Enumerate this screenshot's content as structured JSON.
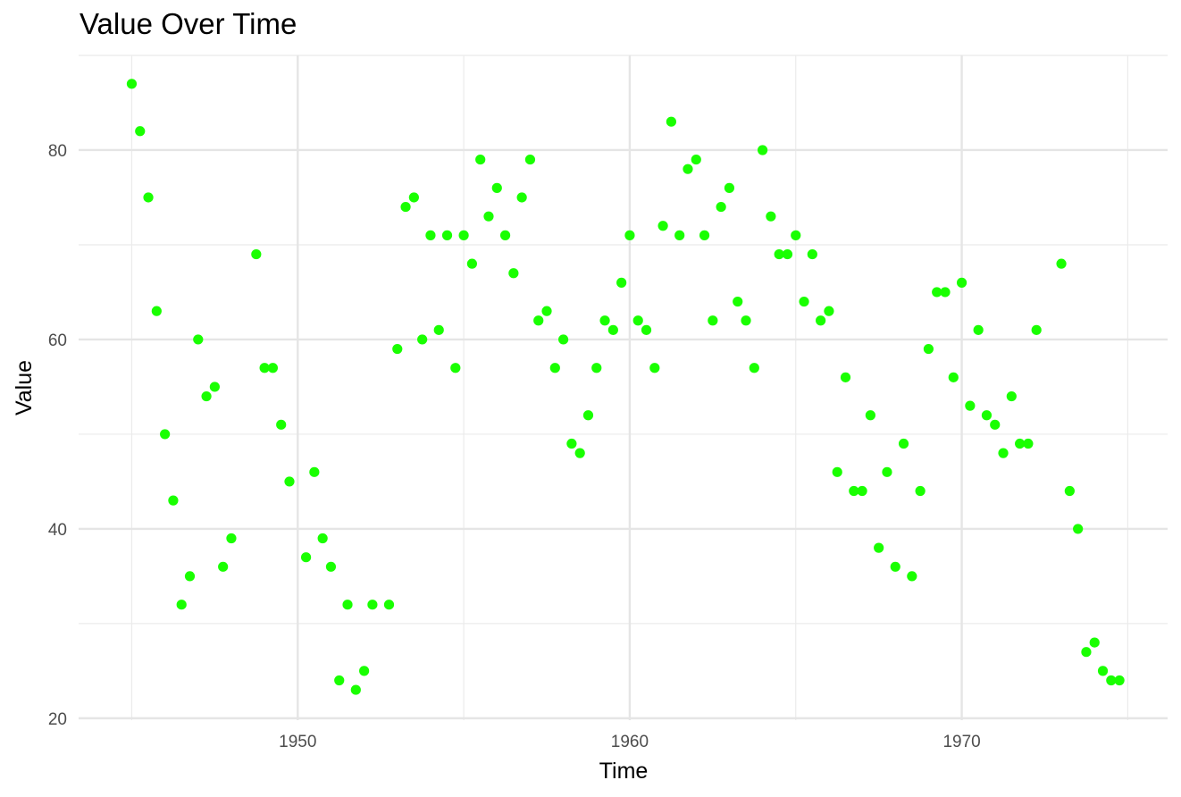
{
  "chart_data": {
    "type": "scatter",
    "title": "Value Over Time",
    "xlabel": "Time",
    "ylabel": "Value",
    "xlim": [
      1943.4,
      1976.2
    ],
    "ylim": [
      19.8,
      90.0
    ],
    "x_ticks": [
      1950,
      1960,
      1970
    ],
    "x_tick_labels": [
      "1950",
      "1960",
      "1970"
    ],
    "y_ticks": [
      20,
      40,
      60,
      80
    ],
    "y_tick_labels": [
      "20",
      "40",
      "60",
      "80"
    ],
    "grid": true,
    "point_color": "#19ff00",
    "points": [
      [
        1945.0,
        87
      ],
      [
        1945.25,
        82
      ],
      [
        1945.5,
        75
      ],
      [
        1945.75,
        63
      ],
      [
        1946.0,
        50
      ],
      [
        1946.25,
        43
      ],
      [
        1946.5,
        32
      ],
      [
        1946.75,
        35
      ],
      [
        1947.0,
        60
      ],
      [
        1947.25,
        54
      ],
      [
        1947.5,
        55
      ],
      [
        1947.75,
        36
      ],
      [
        1948.0,
        39
      ],
      [
        1948.75,
        69
      ],
      [
        1949.0,
        57
      ],
      [
        1949.25,
        57
      ],
      [
        1949.5,
        51
      ],
      [
        1949.75,
        45
      ],
      [
        1950.25,
        37
      ],
      [
        1950.5,
        46
      ],
      [
        1950.75,
        39
      ],
      [
        1951.0,
        36
      ],
      [
        1951.25,
        24
      ],
      [
        1951.5,
        32
      ],
      [
        1951.75,
        23
      ],
      [
        1952.0,
        25
      ],
      [
        1952.25,
        32
      ],
      [
        1952.75,
        32
      ],
      [
        1953.0,
        59
      ],
      [
        1953.25,
        74
      ],
      [
        1953.5,
        75
      ],
      [
        1953.75,
        60
      ],
      [
        1954.0,
        71
      ],
      [
        1954.25,
        61
      ],
      [
        1954.5,
        71
      ],
      [
        1954.75,
        57
      ],
      [
        1955.0,
        71
      ],
      [
        1955.25,
        68
      ],
      [
        1955.5,
        79
      ],
      [
        1955.75,
        73
      ],
      [
        1956.0,
        76
      ],
      [
        1956.25,
        71
      ],
      [
        1956.5,
        67
      ],
      [
        1956.75,
        75
      ],
      [
        1957.0,
        79
      ],
      [
        1957.25,
        62
      ],
      [
        1957.5,
        63
      ],
      [
        1957.75,
        57
      ],
      [
        1958.0,
        60
      ],
      [
        1958.25,
        49
      ],
      [
        1958.5,
        48
      ],
      [
        1958.75,
        52
      ],
      [
        1959.0,
        57
      ],
      [
        1959.25,
        62
      ],
      [
        1959.5,
        61
      ],
      [
        1959.75,
        66
      ],
      [
        1960.0,
        71
      ],
      [
        1960.25,
        62
      ],
      [
        1960.5,
        61
      ],
      [
        1960.75,
        57
      ],
      [
        1961.0,
        72
      ],
      [
        1961.25,
        83
      ],
      [
        1961.5,
        71
      ],
      [
        1961.75,
        78
      ],
      [
        1962.0,
        79
      ],
      [
        1962.25,
        71
      ],
      [
        1962.5,
        62
      ],
      [
        1962.75,
        74
      ],
      [
        1963.0,
        76
      ],
      [
        1963.25,
        64
      ],
      [
        1963.5,
        62
      ],
      [
        1963.75,
        57
      ],
      [
        1964.0,
        80
      ],
      [
        1964.25,
        73
      ],
      [
        1964.5,
        69
      ],
      [
        1964.75,
        69
      ],
      [
        1965.0,
        71
      ],
      [
        1965.25,
        64
      ],
      [
        1965.5,
        69
      ],
      [
        1965.75,
        62
      ],
      [
        1966.0,
        63
      ],
      [
        1966.25,
        46
      ],
      [
        1966.5,
        56
      ],
      [
        1966.75,
        44
      ],
      [
        1967.0,
        44
      ],
      [
        1967.25,
        52
      ],
      [
        1967.5,
        38
      ],
      [
        1967.75,
        46
      ],
      [
        1968.0,
        36
      ],
      [
        1968.25,
        49
      ],
      [
        1968.5,
        35
      ],
      [
        1968.75,
        44
      ],
      [
        1969.0,
        59
      ],
      [
        1969.25,
        65
      ],
      [
        1969.5,
        65
      ],
      [
        1969.75,
        56
      ],
      [
        1970.0,
        66
      ],
      [
        1970.25,
        53
      ],
      [
        1970.5,
        61
      ],
      [
        1970.75,
        52
      ],
      [
        1971.0,
        51
      ],
      [
        1971.25,
        48
      ],
      [
        1971.5,
        54
      ],
      [
        1971.75,
        49
      ],
      [
        1972.0,
        49
      ],
      [
        1972.25,
        61
      ],
      [
        1973.0,
        68
      ],
      [
        1973.25,
        44
      ],
      [
        1973.5,
        40
      ],
      [
        1973.75,
        27
      ],
      [
        1974.0,
        28
      ],
      [
        1974.25,
        25
      ],
      [
        1974.5,
        24
      ],
      [
        1974.75,
        24
      ]
    ]
  }
}
